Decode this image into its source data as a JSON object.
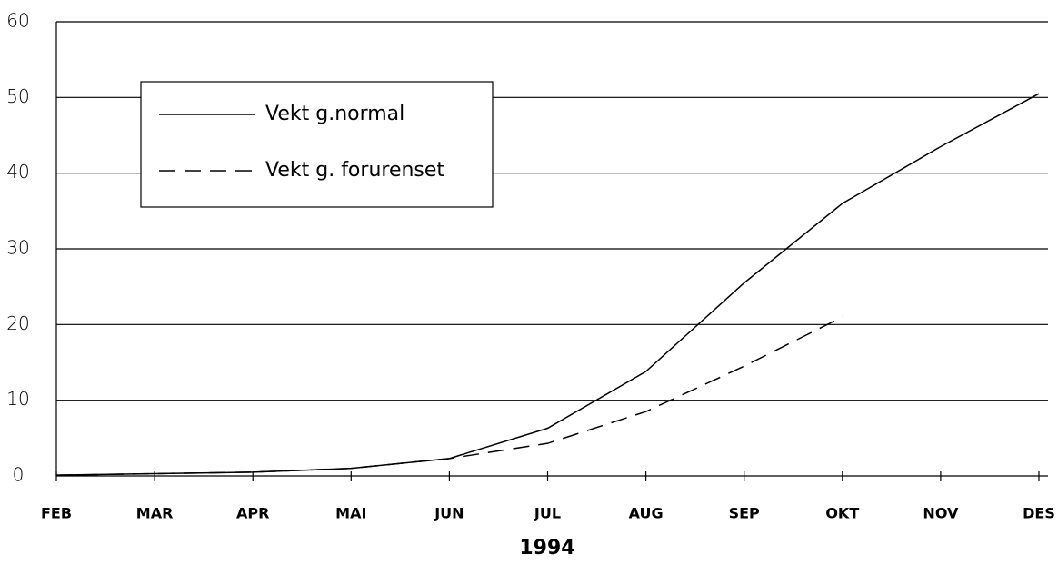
{
  "chart_data": {
    "type": "line",
    "x_label": "1994",
    "categories": [
      "FEB",
      "MAR",
      "APR",
      "MAI",
      "JUN",
      "JUL",
      "AUG",
      "SEP",
      "OKT",
      "NOV",
      "DES"
    ],
    "series": [
      {
        "name": "Vekt g.normal",
        "color": "#000000",
        "dash": "solid",
        "values": [
          0.1,
          0.3,
          0.5,
          1.0,
          2.3,
          6.3,
          13.8,
          25.5,
          36.0,
          43.5,
          50.5
        ]
      },
      {
        "name": "Vekt g. forurenset",
        "color": "#000000",
        "dash": "dashed",
        "values": [
          0.1,
          0.3,
          0.5,
          1.0,
          2.3,
          4.3,
          8.5,
          14.5,
          21.0,
          null,
          null
        ]
      }
    ],
    "ylim": [
      0,
      60
    ],
    "yticks": [
      0,
      10,
      20,
      30,
      40,
      50,
      60
    ],
    "grid": true,
    "legend": "upper left"
  }
}
